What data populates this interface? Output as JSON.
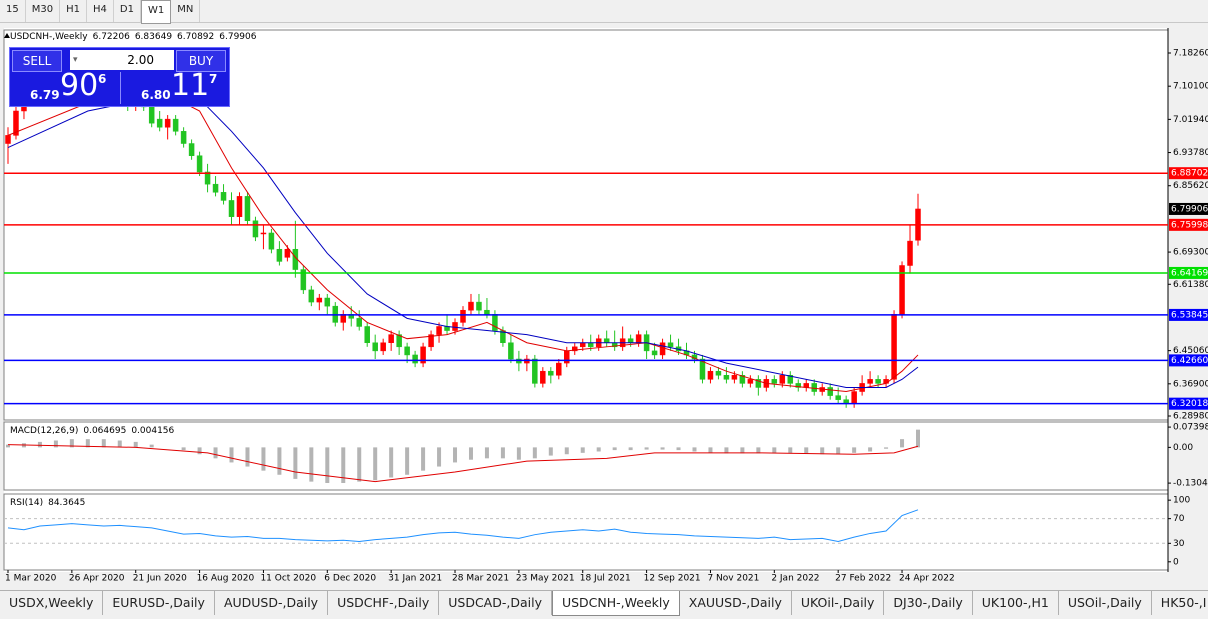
{
  "toolbar": {
    "timeframes": [
      "15",
      "M30",
      "H1",
      "H4",
      "D1",
      "W1",
      "MN"
    ]
  },
  "trade_panel": {
    "sell": "SELL",
    "buy": "BUY",
    "lot": "2.00",
    "sell_price": {
      "head": "6.79",
      "big": "90",
      "tail": "6"
    },
    "buy_price": {
      "head": "6.80",
      "big": "11",
      "tail": "7"
    }
  },
  "tabs": [
    "USDX,Weekly",
    "EURUSD-,Daily",
    "AUDUSD-,Daily",
    "USDCHF-,Daily",
    "USDCAD-,Daily",
    "USDCNH-,Weekly",
    "XAUUSD-,Daily",
    "UKOil-,Daily",
    "DJ30-,Daily",
    "UK100-,H1",
    "USOil-,Daily",
    "HK50-,I"
  ],
  "chart_data": [
    {
      "type": "candlestick",
      "title": "USDCNH-,Weekly",
      "up_color": "#ff0000",
      "down_color": "#22c422",
      "ylim": [
        6.28,
        7.2392
      ],
      "yticks": [
        {
          "value": 7.1826,
          "label": "7.18260"
        },
        {
          "value": 7.101,
          "label": "7.10100"
        },
        {
          "value": 7.0194,
          "label": "7.01940"
        },
        {
          "value": 6.9378,
          "label": "6.93780"
        },
        {
          "value": 6.8562,
          "label": "6.85620"
        },
        {
          "value": 6.693,
          "label": "6.69300"
        },
        {
          "value": 6.6138,
          "label": "6.61380"
        },
        {
          "value": 6.4506,
          "label": "6.45060"
        },
        {
          "value": 6.369,
          "label": "6.36900"
        },
        {
          "value": 6.2898,
          "label": "6.28980"
        }
      ],
      "xticks": [
        {
          "value": 0,
          "label": "1 Mar 2020"
        },
        {
          "value": 8,
          "label": "26 Apr 2020"
        },
        {
          "value": 16,
          "label": "21 Jun 2020"
        },
        {
          "value": 24,
          "label": "16 Aug 2020"
        },
        {
          "value": 32,
          "label": "11 Oct 2020"
        },
        {
          "value": 40,
          "label": "6 Dec 2020"
        },
        {
          "value": 48,
          "label": "31 Jan 2021"
        },
        {
          "value": 56,
          "label": "28 Mar 2021"
        },
        {
          "value": 64,
          "label": "23 May 2021"
        },
        {
          "value": 72,
          "label": "18 Jul 2021"
        },
        {
          "value": 80,
          "label": "12 Sep 2021"
        },
        {
          "value": 88,
          "label": "7 Nov 2021"
        },
        {
          "value": 96,
          "label": "2 Jan 2022"
        },
        {
          "value": 104,
          "label": "27 Feb 2022"
        },
        {
          "value": 112,
          "label": "24 Apr 2022"
        }
      ],
      "levels": [
        {
          "value": 6.88702,
          "color": "#ff0000"
        },
        {
          "value": 6.75998,
          "color": "#ff0000"
        },
        {
          "value": 6.64169,
          "color": "#00e000"
        },
        {
          "value": 6.53845,
          "color": "#0000ff"
        },
        {
          "value": {
            "value": 6.4266,
            "label": "6.42660"
          },
          "color": "#0000ff"
        },
        {
          "value": 6.32018,
          "color": "#0000ff"
        }
      ],
      "lines": [
        {
          "color": "#e00000",
          "x": [
            0,
            10,
            20,
            24,
            28,
            32,
            36,
            40,
            45,
            50,
            55,
            60,
            65,
            70,
            75,
            80,
            85,
            90,
            95,
            100,
            105,
            110,
            112,
            114
          ],
          "values": [
            6.98,
            7.06,
            7.08,
            7.04,
            6.9,
            6.78,
            6.68,
            6.6,
            6.52,
            6.48,
            6.49,
            6.52,
            6.47,
            6.45,
            6.46,
            6.47,
            6.44,
            6.4,
            6.37,
            6.36,
            6.35,
            6.37,
            6.4,
            6.44
          ]
        },
        {
          "color": "#0000c0",
          "x": [
            0,
            10,
            20,
            24,
            28,
            32,
            36,
            40,
            45,
            50,
            55,
            60,
            65,
            70,
            75,
            80,
            85,
            90,
            95,
            100,
            105,
            110,
            112,
            114
          ],
          "values": [
            6.95,
            7.04,
            7.08,
            7.07,
            6.99,
            6.9,
            6.79,
            6.69,
            6.59,
            6.53,
            6.51,
            6.5,
            6.49,
            6.47,
            6.47,
            6.47,
            6.45,
            6.42,
            6.4,
            6.38,
            6.36,
            6.36,
            6.38,
            6.41
          ]
        }
      ],
      "candles": [
        [
          6.96,
          7.0,
          6.91,
          6.98
        ],
        [
          6.98,
          7.06,
          6.97,
          7.04
        ],
        [
          7.04,
          7.1,
          7.02,
          7.07
        ],
        [
          7.07,
          7.13,
          7.05,
          7.1
        ],
        [
          7.1,
          7.15,
          7.06,
          7.08
        ],
        [
          7.08,
          7.11,
          7.05,
          7.07
        ],
        [
          7.07,
          7.12,
          7.05,
          7.1
        ],
        [
          7.1,
          7.13,
          7.07,
          7.09
        ],
        [
          7.09,
          7.12,
          7.06,
          7.11
        ],
        [
          7.11,
          7.16,
          7.08,
          7.13
        ],
        [
          7.13,
          7.18,
          7.1,
          7.15
        ],
        [
          7.15,
          7.17,
          7.1,
          7.12
        ],
        [
          7.12,
          7.15,
          7.08,
          7.1
        ],
        [
          7.1,
          7.12,
          7.06,
          7.08
        ],
        [
          7.08,
          7.1,
          7.05,
          7.07
        ],
        [
          7.07,
          7.09,
          7.04,
          7.06
        ],
        [
          7.06,
          7.08,
          7.04,
          7.07
        ],
        [
          7.07,
          7.09,
          7.04,
          7.05
        ],
        [
          7.06,
          7.07,
          7.0,
          7.01
        ],
        [
          7.02,
          7.04,
          6.99,
          7.0
        ],
        [
          7.0,
          7.03,
          6.97,
          7.02
        ],
        [
          7.02,
          7.03,
          6.98,
          6.99
        ],
        [
          6.99,
          7.0,
          6.95,
          6.96
        ],
        [
          6.96,
          6.97,
          6.92,
          6.93
        ],
        [
          6.93,
          6.94,
          6.88,
          6.89
        ],
        [
          6.89,
          6.91,
          6.84,
          6.86
        ],
        [
          6.86,
          6.88,
          6.83,
          6.84
        ],
        [
          6.84,
          6.86,
          6.81,
          6.82
        ],
        [
          6.82,
          6.84,
          6.76,
          6.78
        ],
        [
          6.78,
          6.84,
          6.76,
          6.83
        ],
        [
          6.83,
          6.84,
          6.76,
          6.77
        ],
        [
          6.77,
          6.78,
          6.72,
          6.73
        ],
        [
          6.74,
          6.76,
          6.7,
          6.74
        ],
        [
          6.74,
          6.75,
          6.69,
          6.7
        ],
        [
          6.7,
          6.72,
          6.66,
          6.67
        ],
        [
          6.68,
          6.71,
          6.67,
          6.7
        ],
        [
          6.7,
          6.77,
          6.63,
          6.65
        ],
        [
          6.65,
          6.66,
          6.59,
          6.6
        ],
        [
          6.6,
          6.61,
          6.56,
          6.57
        ],
        [
          6.57,
          6.59,
          6.55,
          6.58
        ],
        [
          6.58,
          6.59,
          6.54,
          6.56
        ],
        [
          6.56,
          6.57,
          6.51,
          6.52
        ],
        [
          6.52,
          6.55,
          6.5,
          6.54
        ],
        [
          6.54,
          6.56,
          6.51,
          6.53
        ],
        [
          6.53,
          6.55,
          6.5,
          6.51
        ],
        [
          6.51,
          6.52,
          6.46,
          6.47
        ],
        [
          6.47,
          6.49,
          6.43,
          6.45
        ],
        [
          6.45,
          6.48,
          6.44,
          6.47
        ],
        [
          6.47,
          6.5,
          6.45,
          6.49
        ],
        [
          6.49,
          6.5,
          6.44,
          6.46
        ],
        [
          6.46,
          6.47,
          6.42,
          6.44
        ],
        [
          6.44,
          6.45,
          6.41,
          6.42
        ],
        [
          6.42,
          6.47,
          6.41,
          6.46
        ],
        [
          6.46,
          6.5,
          6.45,
          6.49
        ],
        [
          6.49,
          6.52,
          6.47,
          6.51
        ],
        [
          6.51,
          6.54,
          6.49,
          6.5
        ],
        [
          6.5,
          6.53,
          6.49,
          6.52
        ],
        [
          6.52,
          6.56,
          6.51,
          6.55
        ],
        [
          6.55,
          6.59,
          6.54,
          6.57
        ],
        [
          6.57,
          6.59,
          6.54,
          6.55
        ],
        [
          6.55,
          6.58,
          6.53,
          6.54
        ],
        [
          6.54,
          6.55,
          6.49,
          6.5
        ],
        [
          6.5,
          6.51,
          6.46,
          6.47
        ],
        [
          6.47,
          6.49,
          6.42,
          6.43
        ],
        [
          6.43,
          6.45,
          6.4,
          6.42
        ],
        [
          6.42,
          6.44,
          6.4,
          6.43
        ],
        [
          6.43,
          6.44,
          6.36,
          6.37
        ],
        [
          6.37,
          6.41,
          6.36,
          6.4
        ],
        [
          6.4,
          6.41,
          6.37,
          6.39
        ],
        [
          6.39,
          6.43,
          6.38,
          6.42
        ],
        [
          6.42,
          6.46,
          6.41,
          6.45
        ],
        [
          6.45,
          6.47,
          6.44,
          6.46
        ],
        [
          6.46,
          6.48,
          6.45,
          6.47
        ],
        [
          6.47,
          6.49,
          6.45,
          6.46
        ],
        [
          6.46,
          6.49,
          6.45,
          6.48
        ],
        [
          6.48,
          6.5,
          6.46,
          6.47
        ],
        [
          6.47,
          6.5,
          6.45,
          6.46
        ],
        [
          6.46,
          6.51,
          6.45,
          6.48
        ],
        [
          6.48,
          6.49,
          6.46,
          6.47
        ],
        [
          6.47,
          6.5,
          6.46,
          6.49
        ],
        [
          6.49,
          6.5,
          6.43,
          6.45
        ],
        [
          6.45,
          6.47,
          6.43,
          6.44
        ],
        [
          6.44,
          6.48,
          6.43,
          6.47
        ],
        [
          6.47,
          6.49,
          6.45,
          6.46
        ],
        [
          6.46,
          6.48,
          6.44,
          6.45
        ],
        [
          6.45,
          6.47,
          6.43,
          6.44
        ],
        [
          6.44,
          6.45,
          6.42,
          6.43
        ],
        [
          6.43,
          6.44,
          6.37,
          6.38
        ],
        [
          6.38,
          6.41,
          6.37,
          6.4
        ],
        [
          6.4,
          6.41,
          6.38,
          6.39
        ],
        [
          6.39,
          6.41,
          6.37,
          6.38
        ],
        [
          6.38,
          6.4,
          6.37,
          6.39
        ],
        [
          6.39,
          6.4,
          6.36,
          6.37
        ],
        [
          6.37,
          6.39,
          6.36,
          6.38
        ],
        [
          6.38,
          6.39,
          6.34,
          6.36
        ],
        [
          6.36,
          6.39,
          6.35,
          6.38
        ],
        [
          6.38,
          6.39,
          6.36,
          6.37
        ],
        [
          6.37,
          6.4,
          6.36,
          6.39
        ],
        [
          6.39,
          6.4,
          6.36,
          6.37
        ],
        [
          6.37,
          6.38,
          6.35,
          6.36
        ],
        [
          6.36,
          6.38,
          6.35,
          6.37
        ],
        [
          6.37,
          6.38,
          6.34,
          6.35
        ],
        [
          6.35,
          6.37,
          6.34,
          6.36
        ],
        [
          6.36,
          6.37,
          6.33,
          6.34
        ],
        [
          6.34,
          6.36,
          6.32,
          6.33
        ],
        [
          6.33,
          6.34,
          6.31,
          6.32
        ],
        [
          6.32,
          6.36,
          6.31,
          6.35
        ],
        [
          6.35,
          6.39,
          6.34,
          6.37
        ],
        [
          6.37,
          6.4,
          6.36,
          6.38
        ],
        [
          6.38,
          6.39,
          6.36,
          6.37
        ],
        [
          6.37,
          6.39,
          6.36,
          6.38
        ],
        [
          6.38,
          6.55,
          6.37,
          6.54
        ],
        [
          6.54,
          6.67,
          6.53,
          6.66
        ],
        [
          6.66,
          6.76,
          6.64,
          6.72
        ],
        [
          6.72206,
          6.83649,
          6.70892,
          6.79906
        ]
      ]
    },
    {
      "type": "bar",
      "title": "MACD(12,26,9)",
      "color": "#b4b4b4",
      "ylim": [
        -0.1556,
        0.0926
      ],
      "yticks": [
        0.073986,
        {
          "value": 0,
          "label": "0.00"
        },
        -0.130414
      ],
      "x": [
        0,
        2,
        4,
        6,
        8,
        10,
        12,
        14,
        16,
        18,
        20,
        22,
        24,
        26,
        28,
        30,
        32,
        34,
        36,
        38,
        40,
        42,
        44,
        46,
        48,
        50,
        52,
        54,
        56,
        58,
        60,
        62,
        64,
        66,
        68,
        70,
        72,
        74,
        76,
        78,
        80,
        82,
        84,
        86,
        88,
        90,
        92,
        94,
        96,
        98,
        100,
        102,
        104,
        106,
        108,
        110,
        112,
        114
      ],
      "values": [
        0.01,
        0.015,
        0.02,
        0.025,
        0.03,
        0.03,
        0.03,
        0.025,
        0.02,
        0.01,
        0.0,
        -0.01,
        -0.025,
        -0.04,
        -0.055,
        -0.07,
        -0.085,
        -0.1,
        -0.115,
        -0.125,
        -0.13,
        -0.13,
        -0.125,
        -0.12,
        -0.11,
        -0.1,
        -0.085,
        -0.07,
        -0.055,
        -0.045,
        -0.04,
        -0.04,
        -0.045,
        -0.04,
        -0.03,
        -0.025,
        -0.02,
        -0.015,
        -0.01,
        -0.01,
        -0.008,
        -0.008,
        -0.01,
        -0.015,
        -0.02,
        -0.022,
        -0.022,
        -0.022,
        -0.022,
        -0.022,
        -0.022,
        -0.025,
        -0.025,
        -0.02,
        -0.015,
        -0.005,
        0.03,
        0.064695
      ],
      "signal": {
        "color": "#e00000",
        "x": [
          0,
          16,
          25,
          36,
          46,
          56,
          65,
          75,
          81,
          94,
          106,
          111,
          114
        ],
        "values": [
          0.01,
          0.0,
          -0.02,
          -0.09,
          -0.125,
          -0.09,
          -0.05,
          -0.04,
          -0.02,
          -0.02,
          -0.025,
          -0.02,
          0.004156
        ]
      }
    },
    {
      "type": "line",
      "title": "RSI(14)",
      "color": "#1e90ff",
      "ylim": [
        -13.3,
        110
      ],
      "yticks": [
        100,
        70,
        30,
        0
      ],
      "levels": [
        70,
        30
      ],
      "x": [
        0,
        2,
        4,
        6,
        8,
        10,
        12,
        14,
        16,
        18,
        20,
        22,
        24,
        26,
        28,
        30,
        32,
        34,
        36,
        38,
        40,
        42,
        44,
        46,
        48,
        50,
        52,
        54,
        56,
        58,
        60,
        62,
        64,
        66,
        68,
        70,
        72,
        74,
        76,
        78,
        80,
        82,
        84,
        86,
        88,
        90,
        92,
        94,
        96,
        98,
        100,
        102,
        104,
        106,
        108,
        110,
        112,
        114
      ],
      "values": [
        55,
        52,
        58,
        60,
        62,
        60,
        58,
        59,
        57,
        55,
        50,
        45,
        46,
        42,
        40,
        41,
        38,
        38,
        36,
        35,
        34,
        35,
        33,
        36,
        38,
        40,
        44,
        47,
        48,
        45,
        43,
        40,
        38,
        44,
        48,
        50,
        52,
        50,
        53,
        48,
        46,
        45,
        44,
        42,
        41,
        40,
        39,
        38,
        40,
        36,
        37,
        38,
        33,
        40,
        46,
        50,
        75,
        84.3645
      ]
    }
  ]
}
